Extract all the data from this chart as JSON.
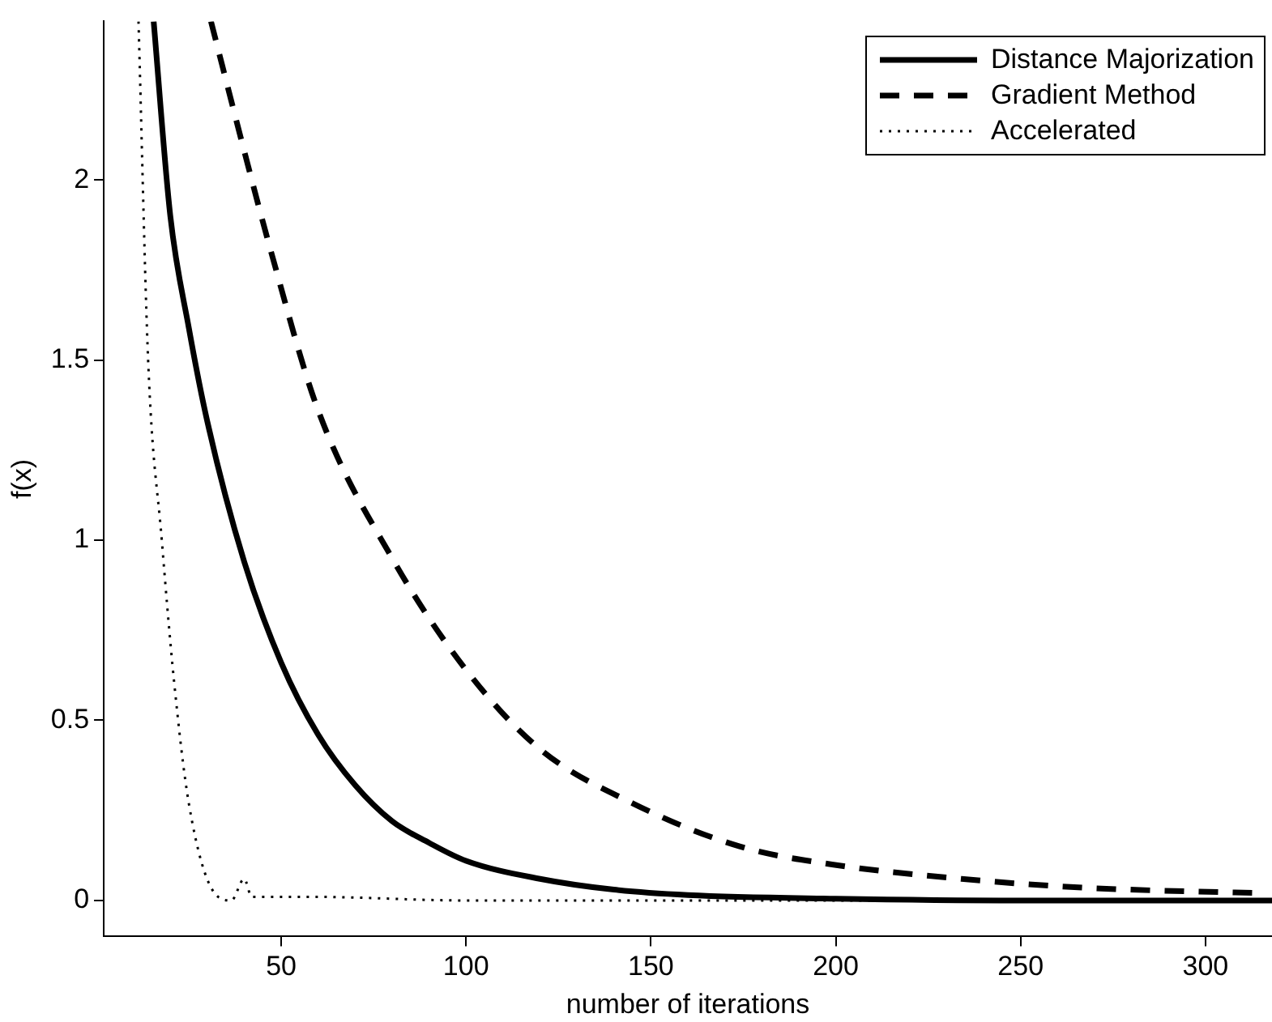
{
  "chart_data": {
    "type": "line",
    "xlabel": "number of iterations",
    "ylabel": "f(x)",
    "xlim": [
      2,
      318
    ],
    "ylim": [
      -0.1,
      2.44
    ],
    "xticks": [
      50,
      100,
      150,
      200,
      250,
      300
    ],
    "yticks": [
      0,
      0.5,
      1,
      1.5,
      2
    ],
    "legend": "top right",
    "grid": false,
    "marker": "none",
    "series": [
      {
        "name": "Distance Majorization",
        "color": "#000000",
        "line_style": "solid",
        "x": [
          15.5,
          20,
          25,
          30,
          40,
          50,
          60,
          70,
          80,
          90,
          100,
          120,
          140,
          160,
          200,
          250,
          318
        ],
        "values": [
          2.44,
          1.9,
          1.59,
          1.33,
          0.94,
          0.66,
          0.46,
          0.32,
          0.22,
          0.16,
          0.11,
          0.06,
          0.03,
          0.015,
          0.005,
          0,
          0
        ]
      },
      {
        "name": "Gradient Method",
        "color": "#000000",
        "line_style": "dashed",
        "x": [
          31,
          40,
          47,
          60,
          80,
          100,
          120,
          145,
          174,
          199,
          234,
          268,
          316
        ],
        "values": [
          2.44,
          2.08,
          1.81,
          1.36,
          0.95,
          0.64,
          0.42,
          0.27,
          0.15,
          0.1,
          0.06,
          0.035,
          0.02
        ]
      },
      {
        "name": "Accelerated",
        "color": "#000000",
        "line_style": "dotted",
        "x": [
          11.4,
          14,
          17.7,
          21,
          25,
          32,
          36.5,
          40,
          42,
          58,
          100,
          318
        ],
        "values": [
          2.44,
          1.5,
          1,
          0.61,
          0.27,
          0.02,
          0,
          0.06,
          0.01,
          0.01,
          0,
          0
        ]
      }
    ]
  }
}
